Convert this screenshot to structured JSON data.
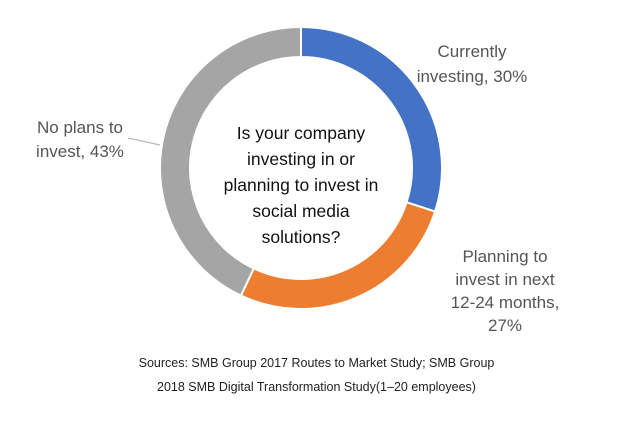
{
  "chart_data": {
    "type": "pie",
    "donut": true,
    "title": "Is your company investing in or planning to invest in social media solutions?",
    "slices": [
      {
        "label": "Currently investing, 30%",
        "value": 30,
        "color": "#4472C4"
      },
      {
        "label": "Planning to invest in next 12-24 months, 27%",
        "value": 27,
        "color": "#ED7D31"
      },
      {
        "label": "No plans to invest, 43%",
        "value": 43,
        "color": "#A5A5A5"
      }
    ],
    "center_lines": [
      "Is your company",
      "investing in or",
      "planning to invest in",
      "social media",
      "solutions?"
    ],
    "label_lines": [
      [
        "Currently",
        "investing, 30%"
      ],
      [
        "Planning to",
        "invest in next",
        "12-24 months,",
        "27%"
      ],
      [
        "No plans to",
        "invest, 43%"
      ]
    ]
  },
  "footer": {
    "line1": "Sources: SMB Group 2017 Routes to Market Study; SMB Group",
    "line2": "2018 SMB Digital Transformation Study(1–20 employees)"
  }
}
